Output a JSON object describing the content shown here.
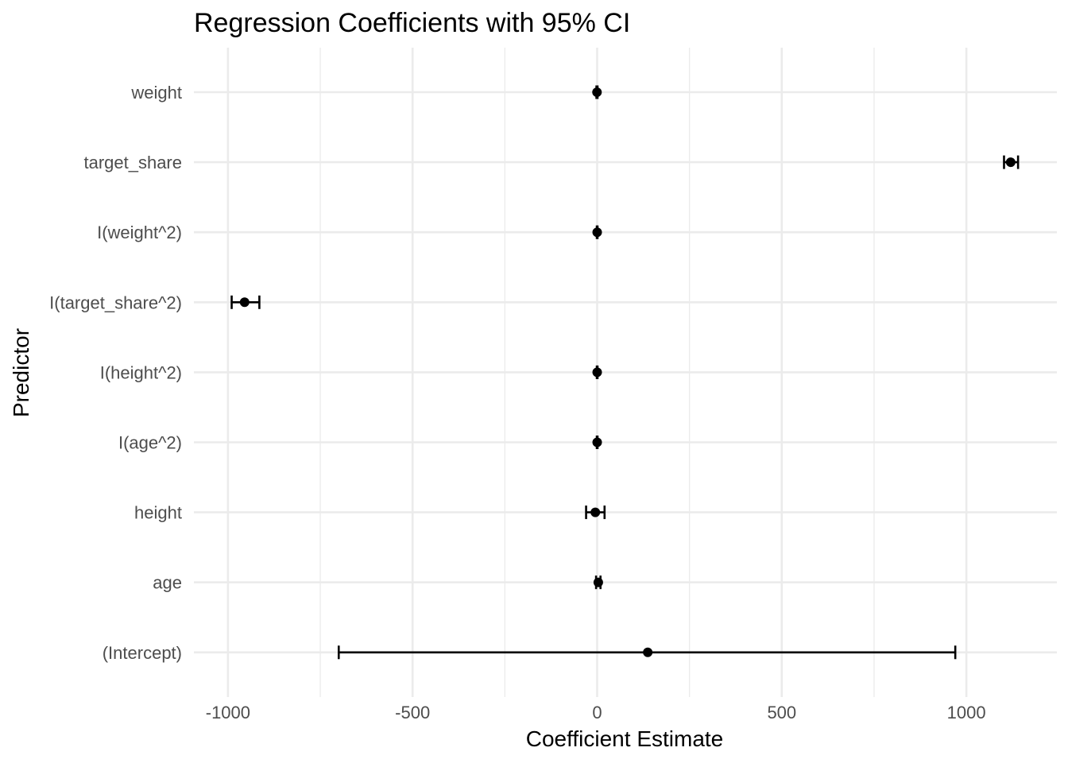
{
  "chart_data": {
    "type": "scatter",
    "title": "Regression Coefficients with 95% CI",
    "xlabel": "Coefficient Estimate",
    "ylabel": "Predictor",
    "xlim": [
      -1100,
      1200
    ],
    "x_ticks": [
      -1000,
      -500,
      0,
      500,
      1000
    ],
    "x_tick_labels": [
      "-1000",
      "-500",
      "0",
      "500",
      "1000"
    ],
    "grid": true,
    "categories": [
      "weight",
      "target_share",
      "I(weight^2)",
      "I(target_share^2)",
      "I(height^2)",
      "I(age^2)",
      "height",
      "age",
      "(Intercept)"
    ],
    "estimates": [
      -0.5,
      1120,
      0,
      -955,
      0,
      0,
      -5,
      3,
      137
    ],
    "ci_low": [
      -2,
      1102,
      -1,
      -990,
      -1,
      -1,
      -30,
      -3,
      -700
    ],
    "ci_high": [
      1,
      1140,
      1,
      -915,
      1,
      1,
      20,
      9,
      970
    ],
    "colors": {
      "point": "#000000",
      "grid": "#ebebeb",
      "tick_text": "#4d4d4d"
    }
  }
}
